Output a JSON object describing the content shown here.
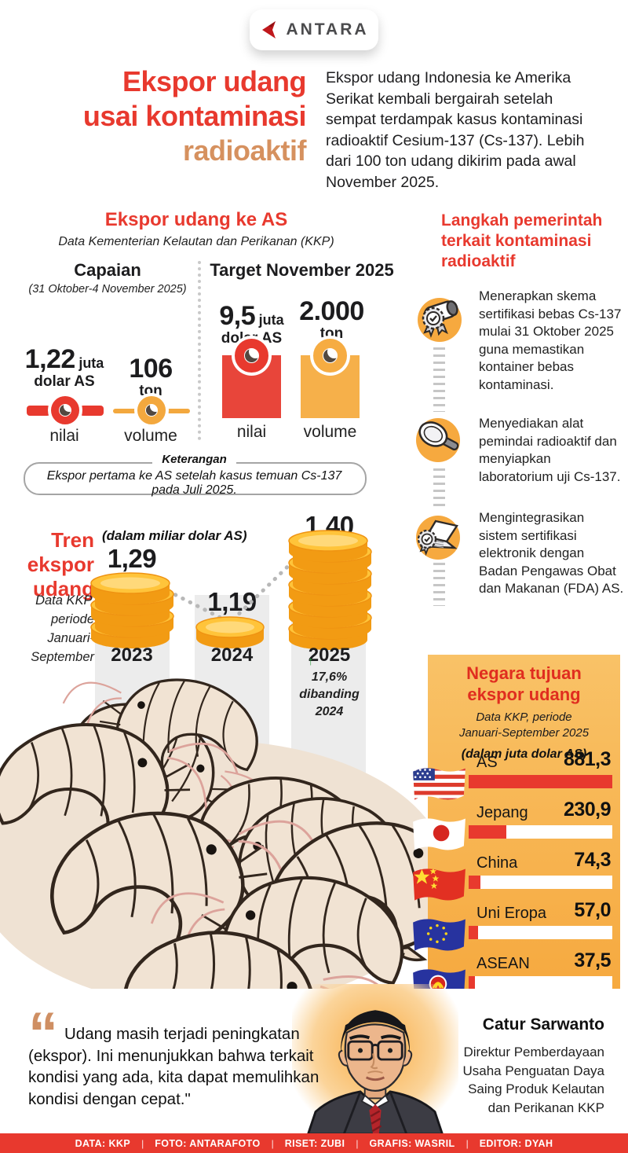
{
  "brand": {
    "name": "ANTARA"
  },
  "title": {
    "line1": "Ekspor udang",
    "line2": "usai kontaminasi",
    "line3": "radioaktif"
  },
  "intro": "Ekspor udang Indonesia ke Amerika Serikat kembali bergairah setelah sempat terdampak kasus kontaminasi radioaktif Cesium-137 (Cs-137). Lebih dari 100 ton udang dikirim pada awal November 2025.",
  "export_us": {
    "heading": "Ekspor udang ke AS",
    "source": "Data Kementerian Kelautan dan Perikanan (KKP)",
    "capaian": {
      "title": "Capaian",
      "period": "(31 Oktober-4 November 2025)",
      "nilai_value": "1,22",
      "nilai_unit1": "juta",
      "nilai_unit2": "dolar AS",
      "nilai_label": "nilai",
      "volume_value": "106",
      "volume_unit": "ton",
      "volume_label": "volume"
    },
    "target": {
      "title": "Target November 2025",
      "nilai_value": "9,5",
      "nilai_unit1": "juta",
      "nilai_unit2": "dolar AS",
      "nilai_label": "nilai",
      "volume_value": "2.000",
      "volume_unit": "ton",
      "volume_label": "volume"
    }
  },
  "keterangan": {
    "label": "Keterangan",
    "text": "Ekspor pertama ke AS setelah kasus temuan Cs-137 pada Juli 2025."
  },
  "steps": {
    "heading_lines": [
      "Langkah pemerintah",
      "terkait kontaminasi",
      "radioaktif"
    ],
    "items": [
      {
        "icon": "certificate-roll-icon",
        "text": "Menerapkan skema sertifikasi bebas Cs-137 mulai 31 Oktober 2025 guna memastikan kontainer bebas kontaminasi."
      },
      {
        "icon": "magnifier-icon",
        "text": "Menyediakan alat pemindai radioaktif dan menyiapkan laboratorium uji Cs-137."
      },
      {
        "icon": "laptop-certificate-icon",
        "text": "Mengintegrasikan sistem sertifikasi elektronik dengan Badan Pengawas Obat dan Makanan (FDA) AS."
      }
    ]
  },
  "trend": {
    "heading_lines": [
      "Tren",
      "ekspor",
      "udang"
    ],
    "source_lines": [
      "Data KKP,",
      "periode",
      "Januari-",
      "September"
    ],
    "unit_note": "(dalam miliar dolar AS)",
    "years": [
      "2023",
      "2024",
      "2025"
    ],
    "values": [
      "1,29",
      "1,19",
      "1,40"
    ],
    "up_arrow": "↑",
    "delta_lines": [
      "17,6%",
      "dibanding",
      "2024"
    ]
  },
  "destinations": {
    "heading_lines": [
      "Negara tujuan",
      "ekspor udang"
    ],
    "source_lines": [
      "Data KKP, periode",
      "Januari-September 2025"
    ],
    "unit_note": "(dalam juta dolar AS)",
    "rows": [
      {
        "label": "AS",
        "value": "881,3",
        "value_num": 881.3,
        "flag": "us-flag-icon"
      },
      {
        "label": "Jepang",
        "value": "230,9",
        "value_num": 230.9,
        "flag": "japan-flag-icon"
      },
      {
        "label": "China",
        "value": "74,3",
        "value_num": 74.3,
        "flag": "china-flag-icon"
      },
      {
        "label": "Uni Eropa",
        "value": "57,0",
        "value_num": 57.0,
        "flag": "eu-flag-icon"
      },
      {
        "label": "ASEAN",
        "value": "37,5",
        "value_num": 37.5,
        "flag": "asean-flag-icon"
      }
    ]
  },
  "quote": {
    "mark": "“",
    "text": "Udang masih terjadi peningkatan (ekspor). Ini menunjukkan bahwa terkait kondisi yang ada, kita dapat memulihkan kondisi dengan cepat.\"",
    "name": "Catur Sarwanto",
    "role": "Direktur Pemberdayaan Usaha Penguatan Daya Saing Produk Kelautan dan Perikanan KKP"
  },
  "footer": {
    "credits": [
      "DATA: KKP",
      "FOTO: ANTARAFOTO",
      "RISET: ZUBI",
      "GRAFIS: WASRIL",
      "EDITOR: DYAH"
    ]
  },
  "colors": {
    "red": "#e8392e",
    "orange": "#f6a93f",
    "tan_title": "#d6915f",
    "coin_gold": "#ffc43a",
    "panel_gradient_top": "#f9c267",
    "gray_column": "#ececec"
  },
  "chart_data": [
    {
      "type": "bar",
      "title": "Ekspor udang ke AS",
      "subtitle": "Data Kementerian Kelautan dan Perikanan (KKP)",
      "groups": [
        {
          "name": "Capaian (31 Oktober-4 November 2025)",
          "nilai_juta_dolar_AS": 1.22,
          "volume_ton": 106
        },
        {
          "name": "Target November 2025",
          "nilai_juta_dolar_AS": 9.5,
          "volume_ton": 2000
        }
      ],
      "note": "Ekspor pertama ke AS setelah kasus temuan Cs-137 pada Juli 2025."
    },
    {
      "type": "line",
      "title": "Tren ekspor udang",
      "subtitle": "Data KKP, periode Januari-September",
      "unit": "miliar dolar AS",
      "x": [
        "2023",
        "2024",
        "2025"
      ],
      "values": [
        1.29,
        1.19,
        1.4
      ],
      "annotation": "2025 naik 17,6% dibanding 2024"
    },
    {
      "type": "bar",
      "title": "Negara tujuan ekspor udang",
      "subtitle": "Data KKP, periode Januari-September 2025",
      "unit": "juta dolar AS",
      "categories": [
        "AS",
        "Jepang",
        "China",
        "Uni Eropa",
        "ASEAN"
      ],
      "values": [
        881.3,
        230.9,
        74.3,
        57.0,
        37.5
      ],
      "xlim": [
        0,
        881.3
      ]
    }
  ]
}
